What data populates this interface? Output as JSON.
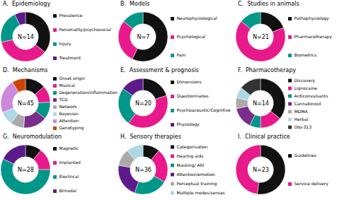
{
  "chart_data": [
    {
      "type": "donut",
      "title": "A.  Epidemiology",
      "annotation": "N=14",
      "values": [
        5,
        5,
        3,
        1
      ],
      "categories": [
        "Prevalence",
        "Personality/psychosocial",
        "Injury",
        "Treatment"
      ],
      "colors": [
        "#111111",
        "#e8198b",
        "#009688",
        "#5c1a8a"
      ],
      "legend": true
    },
    {
      "type": "donut",
      "title": "B.  Models",
      "annotation": "N=7",
      "values": [
        4,
        2,
        1
      ],
      "categories": [
        "Neurophysiological",
        "Psychological",
        "Pain"
      ],
      "colors": [
        "#111111",
        "#e8198b",
        "#009688"
      ],
      "legend": true
    },
    {
      "type": "donut",
      "title": "C.  Studies in animals",
      "annotation": "N=21",
      "values": [
        4,
        14,
        3
      ],
      "categories": [
        "Pathophysiology",
        "Pharmacotherapy",
        "Biometrics"
      ],
      "colors": [
        "#111111",
        "#e8198b",
        "#009688"
      ],
      "legend": true
    },
    {
      "type": "donut",
      "title": "D.  Mechanisms",
      "annotation": "N=45",
      "values": [
        6,
        5,
        5,
        7,
        4,
        4,
        10,
        4
      ],
      "categories": [
        "Onset origin",
        "Musical",
        "Degeneration/inflammation",
        "TCD",
        "Network",
        "Bayesian",
        "Attention",
        "Genotyping"
      ],
      "colors": [
        "#111111",
        "#e8198b",
        "#009688",
        "#7b2d8b",
        "#aaaaaa",
        "#add8e6",
        "#cc88dd",
        "#cc4400"
      ],
      "legend": true
    },
    {
      "type": "donut",
      "title": "E.  Assessment & prognosis",
      "annotation": "N=20",
      "values": [
        4,
        8,
        5,
        3
      ],
      "categories": [
        "Dimensions",
        "Questionnaires",
        "Psychoacoustic/Cognitive",
        "Physiology"
      ],
      "colors": [
        "#111111",
        "#e8198b",
        "#009688",
        "#5c1a8a"
      ],
      "legend": true
    },
    {
      "type": "donut",
      "title": "F.  Pharmacotherapy",
      "annotation": "N=14",
      "values": [
        5,
        2,
        1,
        2,
        1,
        1,
        2
      ],
      "categories": [
        "Discovery",
        "Lignocaine",
        "Anticonvulsants",
        "Cannabinoid",
        "MDMA",
        "Herbal",
        "Oto-313"
      ],
      "colors": [
        "#111111",
        "#e8198b",
        "#009688",
        "#7b2d8b",
        "#aaaaaa",
        "#add8e6",
        "#333333"
      ],
      "legend": true
    },
    {
      "type": "donut",
      "title": "G.  Neuromodulation",
      "annotation": "N=28",
      "values": [
        3,
        4,
        16,
        5
      ],
      "categories": [
        "Magnetic",
        "Implanted",
        "Electrical",
        "Bimodal"
      ],
      "colors": [
        "#111111",
        "#e8198b",
        "#009688",
        "#5c1a8a"
      ],
      "legend": true
    },
    {
      "type": "donut",
      "title": "H.  Sensory therapies",
      "annotation": "N=36",
      "values": [
        4,
        8,
        8,
        8,
        4,
        4
      ],
      "categories": [
        "Categorisation",
        "Hearing aids",
        "Masking/ ARI",
        "Attention/emotion",
        "Perceptual training",
        "Multiple modes/senses"
      ],
      "colors": [
        "#111111",
        "#e8198b",
        "#009688",
        "#5c1a8a",
        "#aaaaaa",
        "#add8e6"
      ],
      "legend": true
    },
    {
      "type": "donut",
      "title": "I.  Clinical practice",
      "annotation": "N=23",
      "values": [
        12,
        11
      ],
      "categories": [
        "Guidelines",
        "Service delivery"
      ],
      "colors": [
        "#111111",
        "#e8198b"
      ],
      "legend": true
    }
  ]
}
